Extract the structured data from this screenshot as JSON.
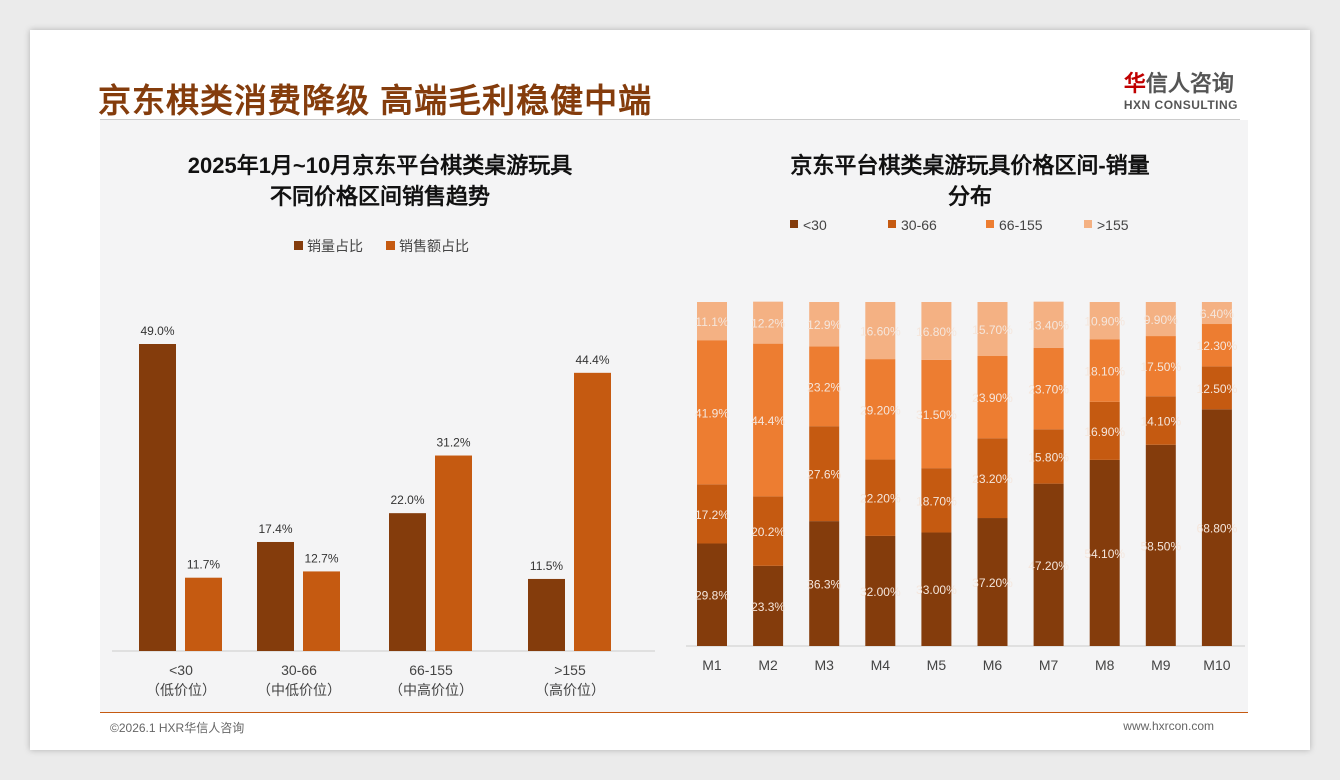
{
  "header": {
    "title": "京东棋类消费降级 高端毛利稳健中端",
    "logo_cn_red": "华",
    "logo_cn": "信人咨询",
    "logo_en": "HXN CONSULTING"
  },
  "footer": {
    "copyright": "©2026.1 HXR华信人咨询",
    "website": "www.hxrcon.com"
  },
  "colors": {
    "dark": "#843c0c",
    "mid": "#c55a11",
    "orange": "#ed7d31",
    "light": "#f4b183"
  },
  "chart_data": [
    {
      "type": "bar",
      "title": "2025年1月~10月京东平台棋类桌游玩具",
      "title2": "不同价格区间销售趋势",
      "categories": [
        "<30",
        "30-66",
        "66-155",
        ">155"
      ],
      "sublabels": [
        "（低价位）",
        "（中低价位）",
        "（中高价位）",
        "（高价位）"
      ],
      "series": [
        {
          "name": "销量占比",
          "values": [
            49.0,
            17.4,
            22.0,
            11.5
          ]
        },
        {
          "name": "销售额占比",
          "values": [
            11.7,
            12.7,
            31.2,
            44.4
          ]
        }
      ],
      "ylim": [
        0,
        50
      ],
      "legend": "top"
    },
    {
      "type": "bar",
      "stacked": true,
      "title": "京东平台棋类桌游玩具价格区间-销量",
      "title2": "分布",
      "categories": [
        "M1",
        "M2",
        "M3",
        "M4",
        "M5",
        "M6",
        "M7",
        "M8",
        "M9",
        "M10"
      ],
      "series": [
        {
          "name": "<30",
          "values": [
            29.8,
            23.3,
            36.3,
            32.0,
            33.0,
            37.2,
            47.2,
            54.1,
            58.5,
            68.8
          ],
          "labels": [
            "29.8%",
            "23.3%",
            "36.3%",
            "32.00%",
            "33.00%",
            "37.20%",
            "47.20%",
            "54.10%",
            "58.50%",
            "68.80%"
          ]
        },
        {
          "name": "30-66",
          "values": [
            17.2,
            20.2,
            27.6,
            22.2,
            18.7,
            23.2,
            15.8,
            16.9,
            14.1,
            12.5
          ],
          "labels": [
            "17.2%",
            "20.2%",
            "27.6%",
            "22.20%",
            "18.70%",
            "23.20%",
            "15.80%",
            "16.90%",
            "14.10%",
            "12.50%"
          ]
        },
        {
          "name": "66-155",
          "values": [
            41.9,
            44.4,
            23.2,
            29.2,
            31.5,
            23.9,
            23.7,
            18.1,
            17.5,
            12.3
          ],
          "labels": [
            "41.9%",
            "44.4%",
            "23.2%",
            "29.20%",
            "31.50%",
            "23.90%",
            "23.70%",
            "18.10%",
            "17.50%",
            "12.30%"
          ]
        },
        {
          "name": ">155",
          "values": [
            11.1,
            12.2,
            12.9,
            16.6,
            16.8,
            15.7,
            13.4,
            10.9,
            9.9,
            6.4
          ],
          "labels": [
            "11.1%",
            "12.2%",
            "12.9%",
            "16.60%",
            "16.80%",
            "15.70%",
            "13.40%",
            "10.90%",
            "9.90%",
            "6.40%"
          ]
        }
      ],
      "ylim": [
        0,
        100
      ],
      "legend": "top"
    }
  ]
}
